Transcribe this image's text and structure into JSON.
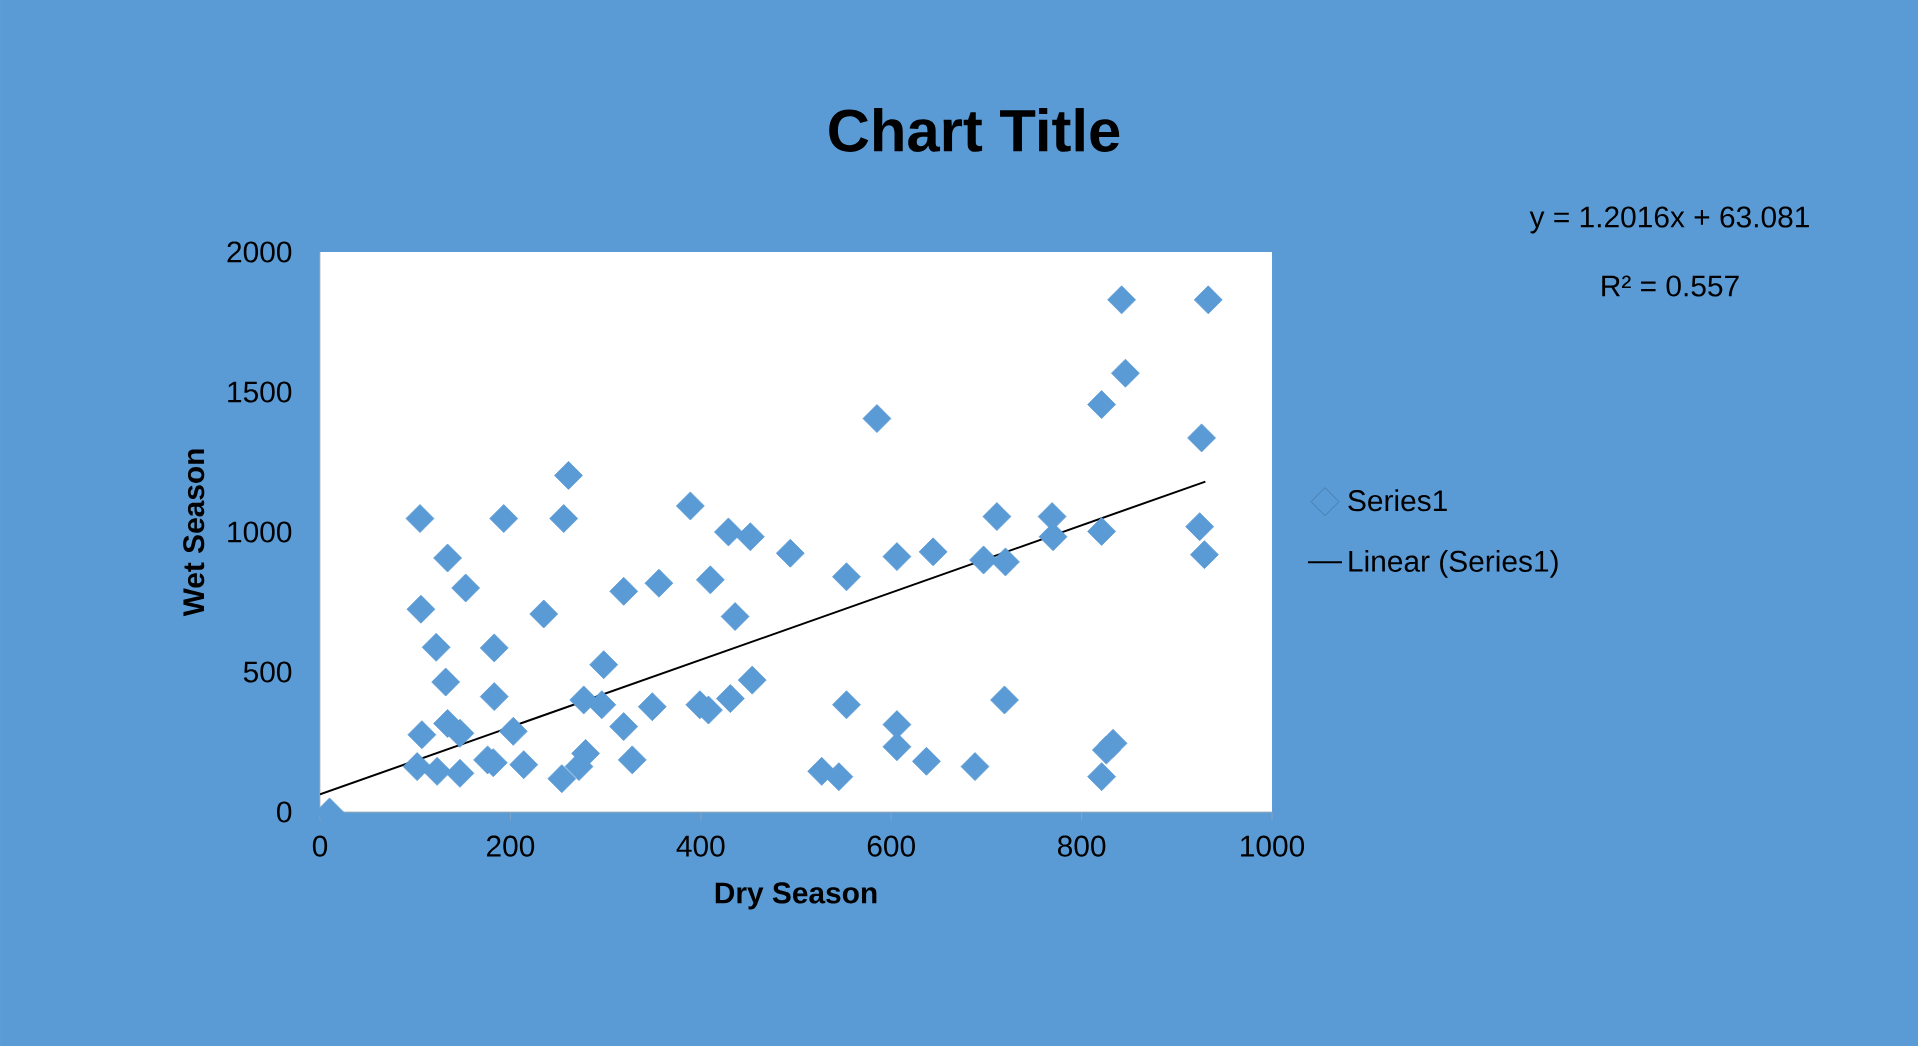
{
  "chart_data": {
    "type": "scatter",
    "title": "Chart Title",
    "xlabel": "Dry Season",
    "ylabel": "Wet Season",
    "annotations": [
      "y = 1.2016x + 63.081",
      "R² = 0.557"
    ],
    "xlim": [
      0,
      1000
    ],
    "xticks": [
      0,
      200,
      400,
      600,
      800,
      1000
    ],
    "ylim": [
      0,
      2000
    ],
    "yticks": [
      0,
      500,
      1000,
      1500,
      2000
    ],
    "legend": "right",
    "marker": "diamond",
    "series": [
      {
        "name": "Series1",
        "color": "#5b9bd5",
        "x": [
          10,
          105,
          134,
          153,
          106,
          122,
          132,
          193,
          261,
          256,
          235,
          183,
          183,
          107,
          134,
          147,
          102,
          123,
          147,
          176,
          182,
          203,
          214,
          254,
          272,
          279,
          277,
          296,
          298,
          319,
          328,
          319,
          356,
          349,
          389,
          429,
          452,
          410,
          436,
          494,
          399,
          408,
          431,
          454,
          842,
          933,
          846,
          821,
          585,
          926,
          553,
          606,
          644,
          711,
          697,
          720,
          769,
          770,
          821,
          924,
          929,
          553,
          606,
          606,
          637,
          688,
          719,
          527,
          545,
          833,
          826,
          821
        ],
        "values": [
          0,
          1048,
          907,
          800,
          724,
          588,
          464,
          1048,
          1202,
          1048,
          707,
          586,
          412,
          276,
          316,
          281,
          162,
          145,
          138,
          186,
          176,
          288,
          169,
          119,
          162,
          209,
          400,
          383,
          526,
          305,
          186,
          788,
          817,
          376,
          1093,
          1000,
          983,
          829,
          698,
          924,
          383,
          364,
          405,
          471,
          1829,
          1829,
          1567,
          1455,
          1405,
          1336,
          840,
          912,
          929,
          1055,
          900,
          893,
          1055,
          983,
          1002,
          1019,
          919,
          383,
          312,
          233,
          181,
          162,
          400,
          145,
          126,
          245,
          221,
          126
        ]
      },
      {
        "name": "Linear (Series1)",
        "type": "line",
        "marker": "none",
        "color": "#000000",
        "x": [
          0,
          930
        ],
        "values": [
          63,
          1180
        ]
      }
    ]
  }
}
